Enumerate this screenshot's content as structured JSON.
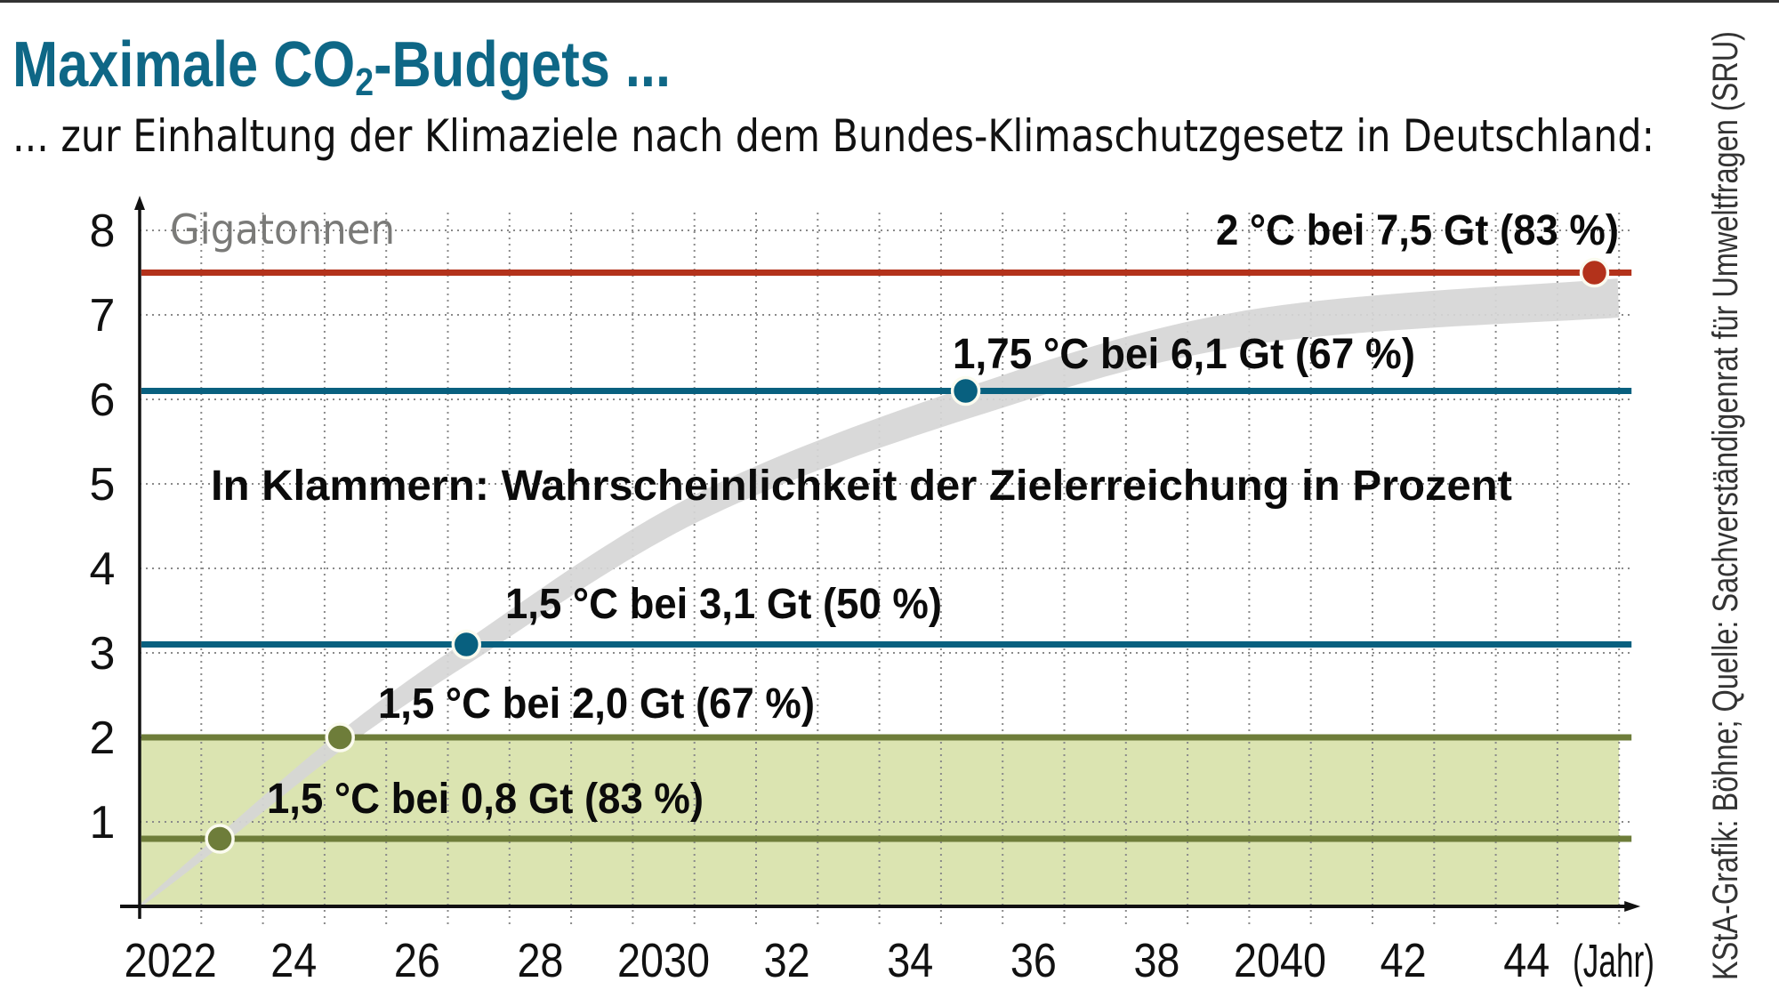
{
  "header": {
    "title_main": "Maximale CO",
    "title_sub2": "2",
    "title_rest": "-Budgets ...",
    "subtitle": "... zur Einhaltung der Klimaziele nach dem Bundes-Klimaschutzgesetz in Deutschland:"
  },
  "credit": "KStA-Grafik: Böhne; Quelle: Sachverständigenrat für Umweltfragen (SRU)",
  "colors": {
    "title": "#0e6786",
    "red": "#b3321b",
    "blue": "#08607f",
    "olive": "#6e7d3a",
    "green_fill": "#dbe4b1",
    "band": "#d6d6d6"
  },
  "chart_data": {
    "type": "line",
    "title": "Maximale CO2-Budgets ...",
    "subtitle": "... zur Einhaltung der Klimaziele nach dem Bundes-Klimaschutzgesetz in Deutschland:",
    "ylabel": "Gigatonnen",
    "xlabel": "(Jahr)",
    "ylim": [
      0,
      8
    ],
    "xlim": [
      2022,
      2046
    ],
    "yticks": [
      "1",
      "2",
      "3",
      "4",
      "5",
      "6",
      "7",
      "8"
    ],
    "xticks": [
      {
        "year": 2022,
        "label": "2022"
      },
      {
        "year": 2024,
        "label": "24"
      },
      {
        "year": 2026,
        "label": "26"
      },
      {
        "year": 2028,
        "label": "28"
      },
      {
        "year": 2030,
        "label": "2030"
      },
      {
        "year": 2032,
        "label": "32"
      },
      {
        "year": 2034,
        "label": "34"
      },
      {
        "year": 2036,
        "label": "36"
      },
      {
        "year": 2038,
        "label": "38"
      },
      {
        "year": 2040,
        "label": "2040"
      },
      {
        "year": 2042,
        "label": "42"
      },
      {
        "year": 2044,
        "label": "44"
      }
    ],
    "xunit": "(Jahr)",
    "grid": true,
    "green_zone": [
      0,
      2.0
    ],
    "cumulative_emissions_band": {
      "description": "Kumulierte Emissionen (grau)",
      "center": [
        [
          2022,
          0
        ],
        [
          2023.3,
          0.78
        ],
        [
          2025.25,
          1.95
        ],
        [
          2027.3,
          3.0
        ],
        [
          2031,
          4.7
        ],
        [
          2035.4,
          5.95
        ],
        [
          2040,
          6.85
        ],
        [
          2046,
          7.2
        ]
      ]
    },
    "budgets": [
      {
        "label": "1,5 °C bei 0,8 Gt (83 %)",
        "target": "1,5 °C",
        "value": 0.8,
        "probability": 83,
        "year_reached": 2023.3,
        "color": "olive"
      },
      {
        "label": "1,5 °C bei 2,0 Gt (67 %)",
        "target": "1,5 °C",
        "value": 2.0,
        "probability": 67,
        "year_reached": 2025.25,
        "color": "olive"
      },
      {
        "label": "1,5 °C bei 3,1 Gt (50 %)",
        "target": "1,5 °C",
        "value": 3.1,
        "probability": 50,
        "year_reached": 2027.3,
        "color": "blue"
      },
      {
        "label": "1,75 °C bei 6,1 Gt (67 %)",
        "target": "1,75 °C",
        "value": 6.1,
        "probability": 67,
        "year_reached": 2035.4,
        "color": "blue"
      },
      {
        "label": "2 °C bei 7,5 Gt (83 %)",
        "target": "2 °C",
        "value": 7.5,
        "probability": 83,
        "year_reached": 2045.6,
        "color": "red"
      }
    ],
    "annotation": "In Klammern: Wahrscheinlichkeit der Zielerreichung in Prozent"
  }
}
